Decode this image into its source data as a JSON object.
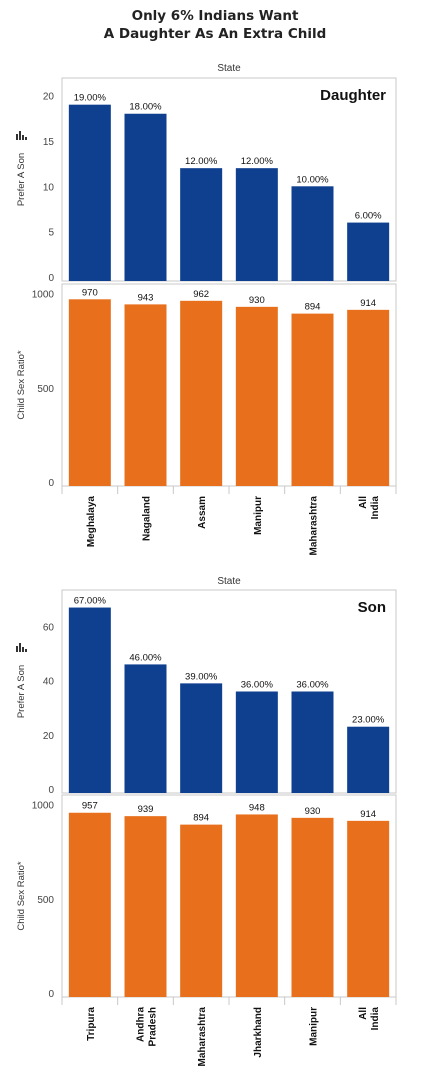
{
  "title_line1": "Only 6% Indians Want",
  "title_line2": "A Daughter As An Extra Child",
  "colors": {
    "blue": "#0f3f8f",
    "orange": "#e8701c",
    "frame": "#c8c8c8"
  },
  "chart_data": [
    {
      "type": "bar",
      "panel_label": "Daughter",
      "header": "State",
      "categories": [
        "Meghalaya",
        "Nagaland",
        "Assam",
        "Manipur",
        "Maharashtra",
        "All India"
      ],
      "series": [
        {
          "name": "Prefer A Son",
          "ylabel": "Prefer A Son",
          "values": [
            19,
            18,
            12,
            12,
            10,
            6
          ],
          "labels": [
            "19.00%",
            "18.00%",
            "12.00%",
            "12.00%",
            "10.00%",
            "6.00%"
          ],
          "ylim": [
            0,
            21.5
          ],
          "ticks": [
            0,
            5,
            10,
            15,
            20
          ]
        },
        {
          "name": "Child Sex Ratio*",
          "ylabel": "Child Sex Ratio*",
          "values": [
            970,
            943,
            962,
            930,
            894,
            914
          ],
          "labels": [
            "970",
            "943",
            "962",
            "930",
            "894",
            "914"
          ],
          "ylim": [
            0,
            1030
          ],
          "ticks": [
            0,
            500,
            1000
          ]
        }
      ]
    },
    {
      "type": "bar",
      "panel_label": "Son",
      "header": "State",
      "categories": [
        "Tripura",
        "Andhra Pradesh",
        "Maharashtra",
        "Jharkhand",
        "Manipur",
        "All India"
      ],
      "series": [
        {
          "name": "Prefer A Son",
          "ylabel": "Prefer A Son",
          "values": [
            67,
            46,
            39,
            36,
            36,
            23
          ],
          "labels": [
            "67.00%",
            "46.00%",
            "39.00%",
            "36.00%",
            "36.00%",
            "23.00%"
          ],
          "ylim": [
            0,
            72
          ],
          "ticks": [
            0,
            20,
            40,
            60
          ]
        },
        {
          "name": "Child Sex Ratio*",
          "ylabel": "Child Sex Ratio*",
          "values": [
            957,
            939,
            894,
            948,
            930,
            914
          ],
          "labels": [
            "957",
            "939",
            "894",
            "948",
            "930",
            "914"
          ],
          "ylim": [
            0,
            1030
          ],
          "ticks": [
            0,
            500,
            1000
          ]
        }
      ]
    }
  ]
}
